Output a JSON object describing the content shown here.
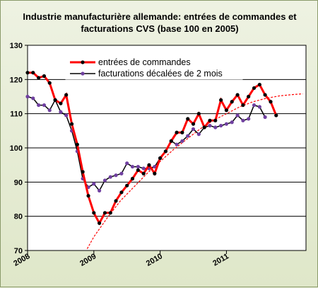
{
  "chart_data": {
    "type": "line",
    "title": "Industrie manufacturière allemande: entrées de commandes et facturations  CVS (base 100 en 2005)",
    "ylim": [
      70,
      130
    ],
    "y_ticks": [
      70,
      80,
      90,
      100,
      110,
      120,
      130
    ],
    "xlim": [
      2008,
      2012.2
    ],
    "x_ticks": [
      "2008",
      "2009",
      "2010",
      "2011"
    ],
    "grid": true,
    "legend_position": "top-center",
    "series": [
      {
        "name": "entrées de commandes",
        "color": "#ff0000",
        "x": [
          2008.0,
          2008.083,
          2008.167,
          2008.25,
          2008.333,
          2008.417,
          2008.5,
          2008.583,
          2008.667,
          2008.75,
          2008.833,
          2008.917,
          2009.0,
          2009.083,
          2009.167,
          2009.25,
          2009.333,
          2009.417,
          2009.5,
          2009.583,
          2009.667,
          2009.75,
          2009.833,
          2009.917,
          2010.0,
          2010.083,
          2010.167,
          2010.25,
          2010.333,
          2010.417,
          2010.5,
          2010.583,
          2010.667,
          2010.75,
          2010.833,
          2010.917,
          2011.0,
          2011.083,
          2011.167,
          2011.25,
          2011.333,
          2011.417,
          2011.5,
          2011.583,
          2011.667,
          2011.75
        ],
        "values": [
          122,
          122,
          120.5,
          121,
          119,
          114,
          113,
          115.5,
          107,
          101,
          93,
          86,
          81,
          78,
          81,
          81,
          84.5,
          87,
          89,
          91,
          93.5,
          92.5,
          95,
          92.5,
          97,
          99,
          102,
          104.5,
          104.5,
          108.5,
          107,
          110,
          106,
          108,
          108,
          114,
          111,
          113.5,
          115.5,
          112.5,
          115,
          117.5,
          118.5,
          115.5,
          113.5,
          109.5
        ]
      },
      {
        "name": "facturations décalées de 2 mois",
        "color": "#000000",
        "marker_color": "#7040a0",
        "x": [
          2008.0,
          2008.083,
          2008.167,
          2008.25,
          2008.333,
          2008.417,
          2008.5,
          2008.583,
          2008.667,
          2008.75,
          2008.833,
          2008.917,
          2009.0,
          2009.083,
          2009.167,
          2009.25,
          2009.333,
          2009.417,
          2009.5,
          2009.583,
          2009.667,
          2009.75,
          2009.833,
          2009.917,
          2010.0,
          2010.083,
          2010.167,
          2010.25,
          2010.333,
          2010.417,
          2010.5,
          2010.583,
          2010.667,
          2010.75,
          2010.833,
          2010.917,
          2011.0,
          2011.083,
          2011.167,
          2011.25,
          2011.333,
          2011.417,
          2011.5,
          2011.583
        ],
        "values": [
          115,
          114.5,
          112.5,
          112.5,
          111,
          114,
          110.5,
          109.5,
          105,
          99,
          91,
          88.5,
          89.5,
          87.5,
          90.5,
          91.5,
          92,
          92.5,
          95.5,
          94.5,
          94.5,
          94,
          94,
          94.5,
          97,
          99,
          102,
          101,
          102,
          103.5,
          105.5,
          104,
          106,
          106.5,
          106,
          106.5,
          107,
          107.5,
          109.5,
          108,
          108.5,
          112.5,
          112,
          109
        ]
      },
      {
        "name": "",
        "style": "dotted",
        "color": "#ff0000",
        "x": [
          2008.9,
          2009.0,
          2009.2,
          2009.4,
          2009.6,
          2009.8,
          2010.0,
          2010.2,
          2010.4,
          2010.6,
          2010.8,
          2011.0,
          2011.2,
          2011.4,
          2011.6,
          2011.8,
          2012.0,
          2012.15
        ],
        "values": [
          70.5,
          74,
          79.5,
          84.5,
          88.5,
          92.5,
          96,
          99.5,
          102.5,
          105.5,
          108,
          110,
          112,
          113.5,
          114.5,
          115.2,
          115.6,
          115.8
        ]
      }
    ]
  }
}
